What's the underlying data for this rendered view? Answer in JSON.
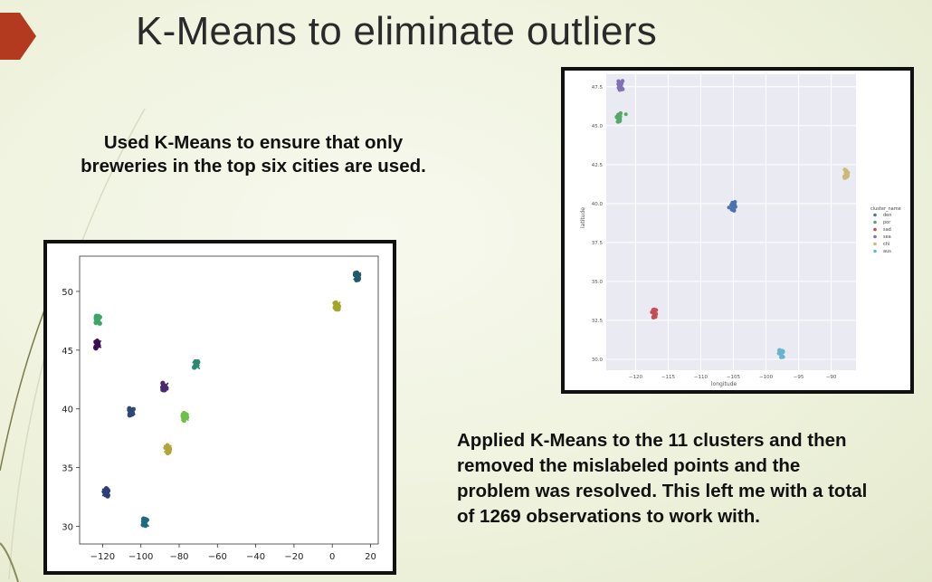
{
  "slide": {
    "title": "K-Means to eliminate outliers",
    "text1_lines": [
      "Used K-Means to ensure that only",
      "breweries in the top six cities are used."
    ],
    "text2_lines": [
      "Applied K-Means to the 11 clusters and then",
      "removed the mislabeled points and the",
      "problem was resolved. This left me with a total",
      "of 1269 observations to work with."
    ],
    "colors": {
      "accent_arrow": "#b3391f",
      "text": "#111111"
    }
  },
  "chart_data": [
    {
      "type": "scatter",
      "xlim": [
        -132,
        24
      ],
      "ylim": [
        28.5,
        53
      ],
      "xticks": [
        -120,
        -100,
        -80,
        -60,
        -40,
        -20,
        0,
        20
      ],
      "yticks": [
        30,
        35,
        40,
        45,
        50
      ],
      "xlabel": "",
      "ylabel": "",
      "grid": false,
      "clusters": [
        {
          "x": -122.5,
          "y": 47.6,
          "color": "#3aa864"
        },
        {
          "x": -122.7,
          "y": 45.5,
          "color": "#3b0f52"
        },
        {
          "x": -118.2,
          "y": 32.9,
          "color": "#2d3e78"
        },
        {
          "x": -104.9,
          "y": 39.8,
          "color": "#2c4876"
        },
        {
          "x": -97.7,
          "y": 30.3,
          "color": "#1f6a80"
        },
        {
          "x": -87.6,
          "y": 41.9,
          "color": "#4a2a6e"
        },
        {
          "x": -86.0,
          "y": 36.6,
          "color": "#b2a43a"
        },
        {
          "x": -77.0,
          "y": 39.3,
          "color": "#6fbf4a"
        },
        {
          "x": -71.1,
          "y": 43.7,
          "color": "#2a8a70"
        },
        {
          "x": 2.3,
          "y": 48.8,
          "color": "#a4a629"
        },
        {
          "x": 13.0,
          "y": 51.3,
          "color": "#205a6a"
        }
      ]
    },
    {
      "type": "scatter",
      "xlim": [
        -124.5,
        -86.2
      ],
      "ylim": [
        29.3,
        48.3
      ],
      "xticks": [
        -120,
        -115,
        -110,
        -105,
        -100,
        -95,
        -90
      ],
      "yticks": [
        30.0,
        32.5,
        35.0,
        37.5,
        40.0,
        42.5,
        45.0,
        47.5
      ],
      "xlabel": "longitude",
      "ylabel": "latitude",
      "grid": true,
      "legend_title": "cluster_name",
      "legend_position": "right",
      "series": [
        {
          "name": "den",
          "color": "#4c72b0",
          "x": -105.0,
          "y": 39.8
        },
        {
          "name": "por",
          "color": "#55a868",
          "x": -122.6,
          "y": 45.5
        },
        {
          "name": "sad",
          "color": "#c44e52",
          "x": -117.2,
          "y": 32.9
        },
        {
          "name": "sea",
          "color": "#8172b2",
          "x": -122.3,
          "y": 47.6
        },
        {
          "name": "chi",
          "color": "#ccb974",
          "x": -87.7,
          "y": 41.9
        },
        {
          "name": "aus",
          "color": "#64b5cd",
          "x": -97.7,
          "y": 30.3
        }
      ]
    }
  ]
}
